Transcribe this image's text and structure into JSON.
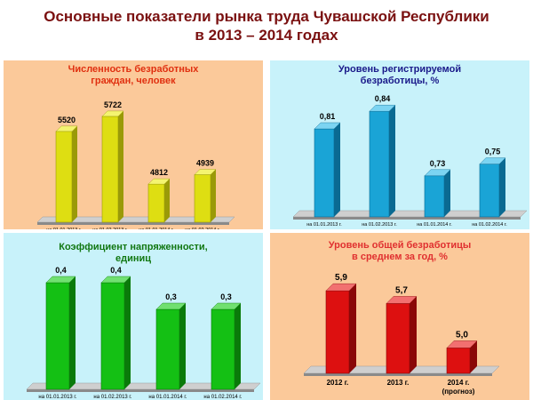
{
  "page": {
    "title_line1": "Основные показатели рынка труда Чувашской Республики",
    "title_line2": "в 2013 – 2014 годах"
  },
  "chart_data": [
    {
      "type": "bar",
      "title_lines": [
        "Численность безработных",
        "граждан, человек"
      ],
      "categories": [
        "на 01.01.2013 г.",
        "на 01.02.2013 г.",
        "на 01.01.2014 г.",
        "на 01.02.2014 г."
      ],
      "values": [
        5520,
        5722,
        4812,
        4939
      ],
      "labels": [
        "5520",
        "5722",
        "4812",
        "4939"
      ],
      "ylim": [
        4300,
        5900
      ],
      "colors": {
        "front": "#dede12",
        "side": "#9a9a08",
        "top": "#f4f470",
        "title": "#e03010",
        "background": "#fbc99a"
      }
    },
    {
      "type": "bar",
      "title_lines": [
        "Уровень регистрируемой",
        "безработицы, %"
      ],
      "categories": [
        "на 01.01.2013 г.",
        "на 01.02.2013 г.",
        "на 01.01.2014 г.",
        "на 01.02.2014 г."
      ],
      "values": [
        0.81,
        0.84,
        0.73,
        0.75
      ],
      "labels": [
        "0,81",
        "0,84",
        "0,73",
        "0,75"
      ],
      "ylim": [
        0.66,
        0.86
      ],
      "colors": {
        "front": "#1aa4d6",
        "side": "#0a6a92",
        "top": "#7cd4f2",
        "title": "#1a1a8a",
        "background": "#c8f2fa"
      }
    },
    {
      "type": "bar",
      "title_lines": [
        "Коэффициент напряженности,",
        "единиц"
      ],
      "categories": [
        "на 01.01.2013 г.",
        "на 01.02.2013 г.",
        "на 01.01.2014 г.",
        "на 01.02.2014 г."
      ],
      "values": [
        0.4,
        0.4,
        0.3,
        0.3
      ],
      "labels": [
        "0,4",
        "0,4",
        "0,3",
        "0,3"
      ],
      "ylim": [
        0,
        0.42
      ],
      "colors": {
        "front": "#14c014",
        "side": "#0a7a0a",
        "top": "#70e070",
        "title": "#117711",
        "background": "#c8f2fa"
      }
    },
    {
      "type": "bar",
      "title_lines": [
        "Уровень общей безработицы",
        "в среднем за год, %"
      ],
      "categories": [
        "2012 г.",
        "2013 г.",
        "2014 г."
      ],
      "category_sublabels": [
        "",
        "",
        "(прогноз)"
      ],
      "values": [
        5.9,
        5.7,
        5.0
      ],
      "labels": [
        "5,9",
        "5,7",
        "5,0"
      ],
      "ylim": [
        4.6,
        6.0
      ],
      "colors": {
        "front": "#dd1010",
        "side": "#8a0808",
        "top": "#f27070",
        "title": "#e03030",
        "background": "#fbc99a"
      }
    }
  ]
}
